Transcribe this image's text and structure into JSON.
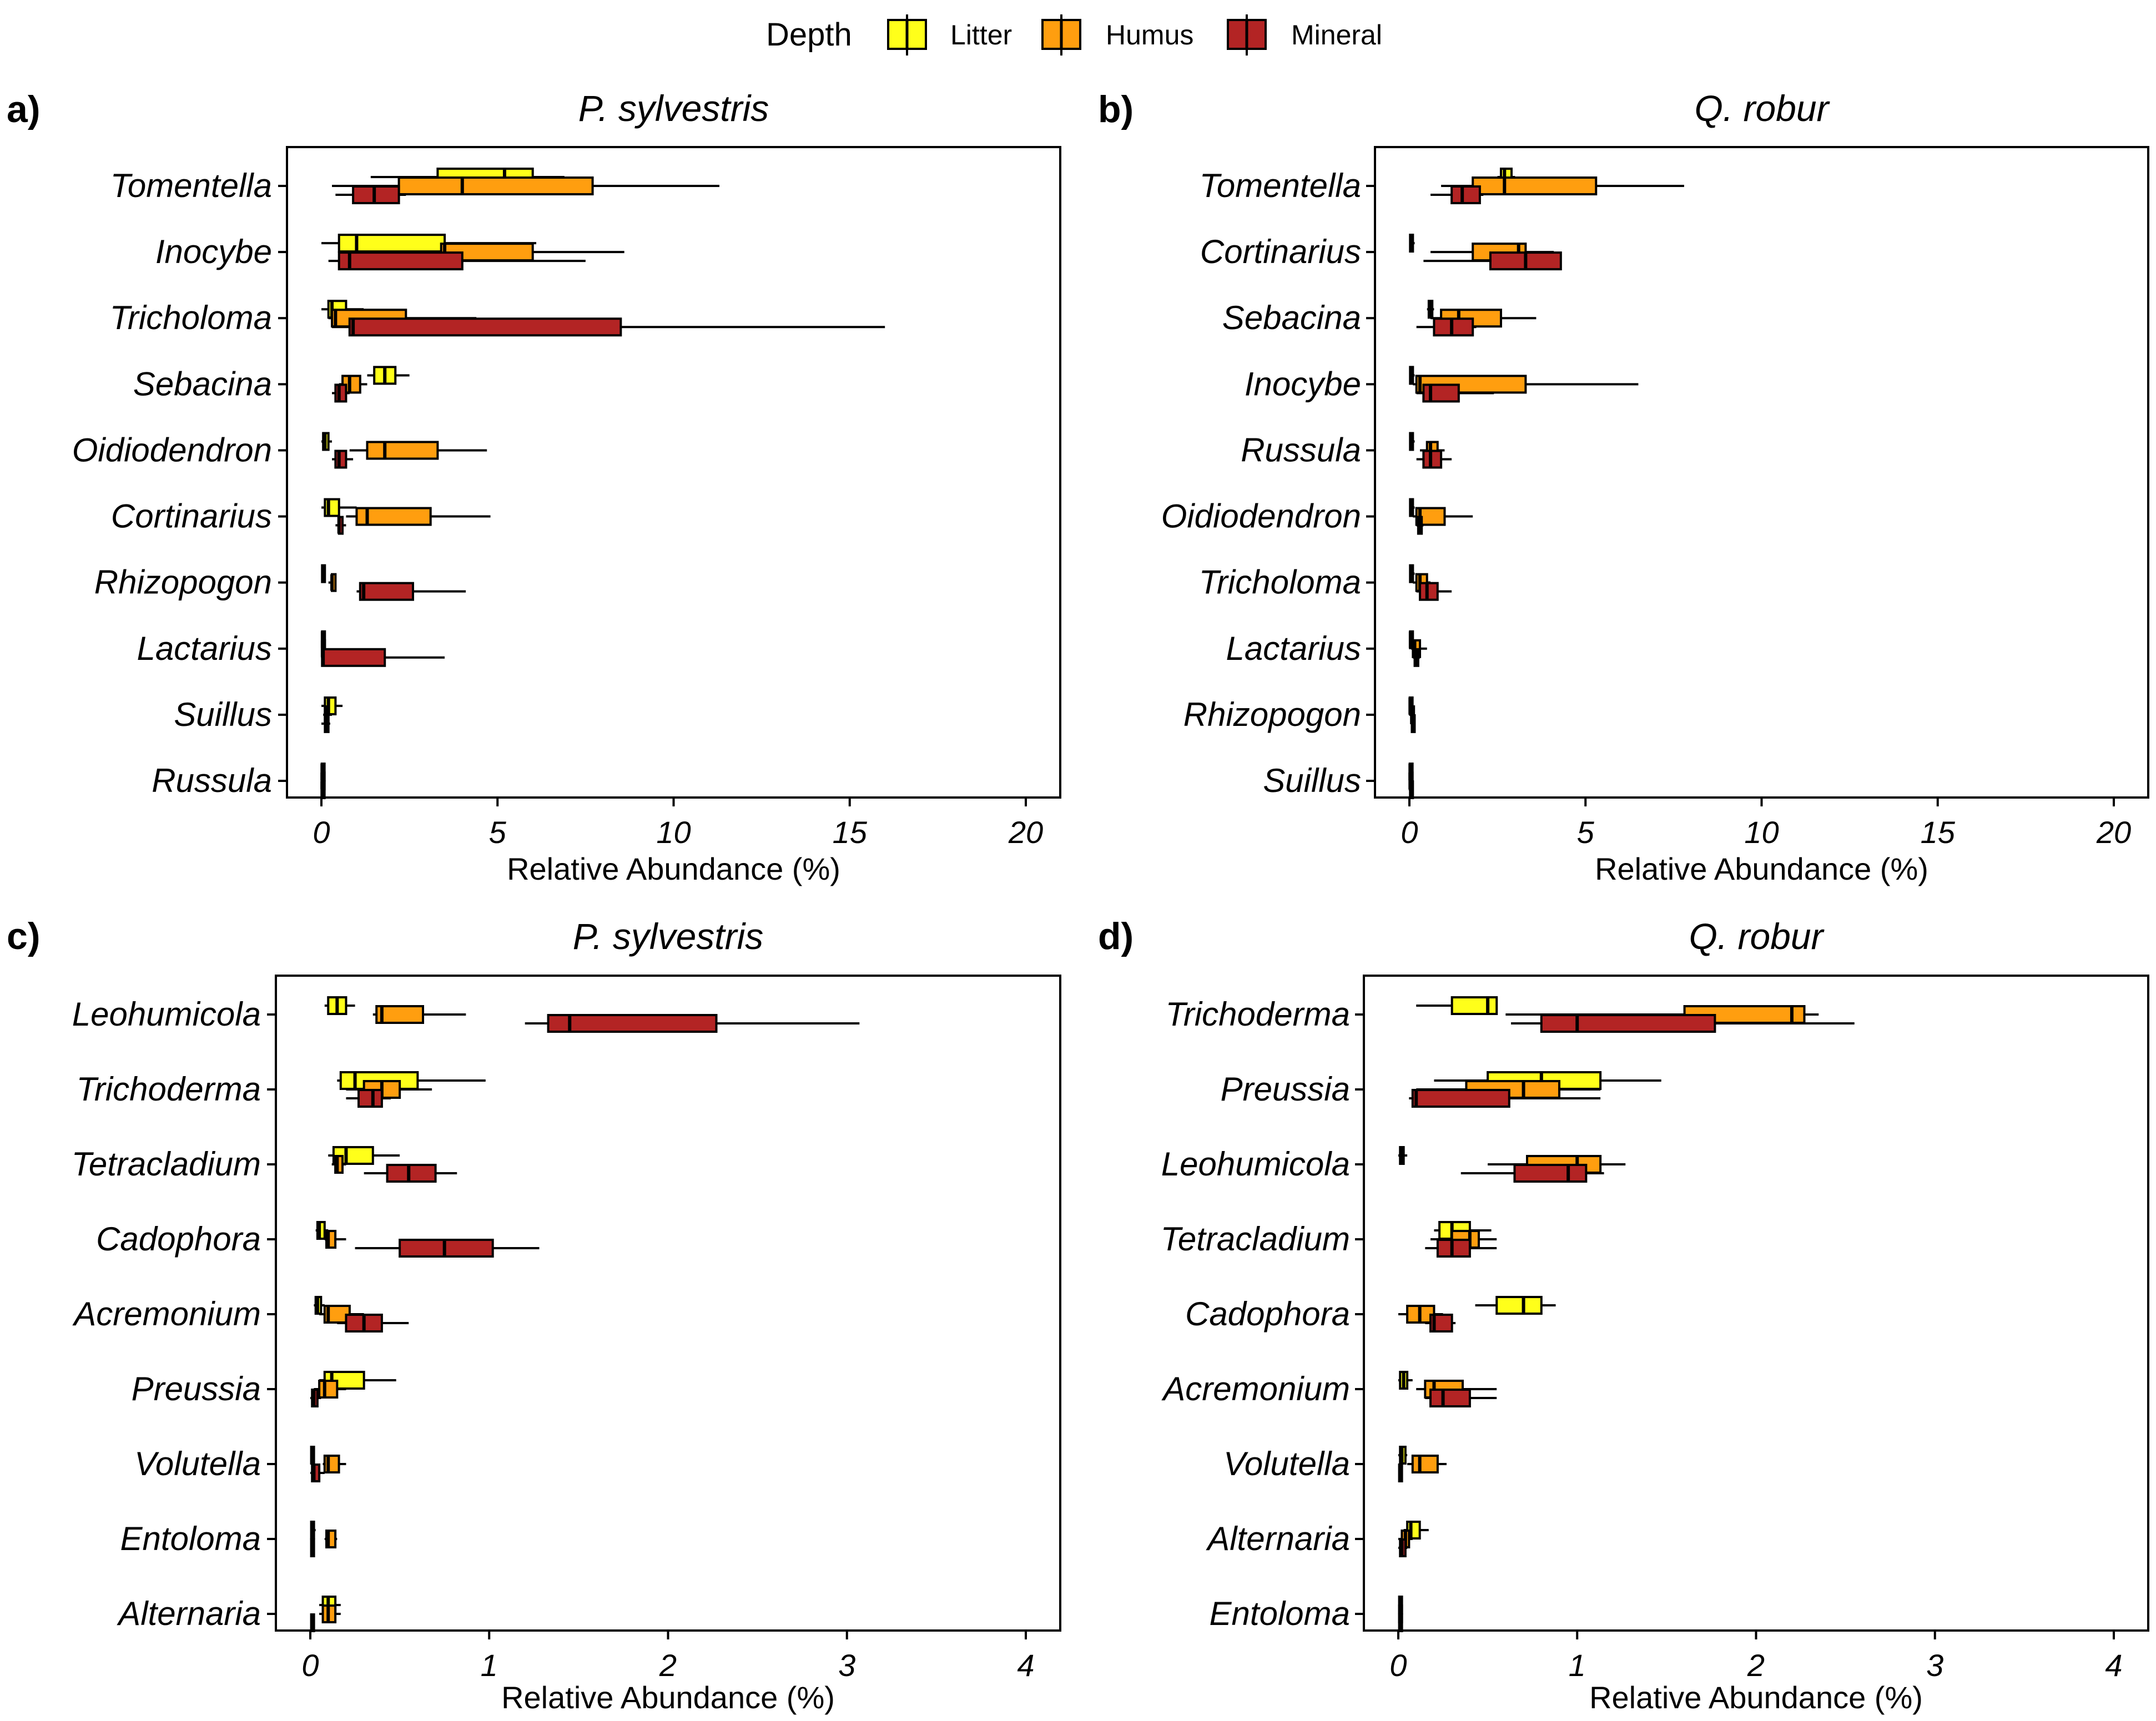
{
  "legend": {
    "title": "Depth",
    "items": [
      {
        "label": "Litter",
        "color": "#FFFF1A"
      },
      {
        "label": "Humus",
        "color": "#FF9E0F"
      },
      {
        "label": "Mineral",
        "color": "#B32424"
      }
    ]
  },
  "chart_data": [
    {
      "panel": "a)",
      "title": "P. sylvestris",
      "type": "boxplot-horizontal",
      "xlabel": "Relative Abundance (%)",
      "xlim": [
        0,
        20
      ],
      "xticks": [
        0,
        5,
        10,
        15,
        20
      ],
      "categories": [
        "Tomentella",
        "Inocybe",
        "Tricholoma",
        "Sebacina",
        "Oidiodendron",
        "Cortinarius",
        "Rhizopogon",
        "Lactarius",
        "Suillus",
        "Russula"
      ],
      "series": [
        {
          "name": "Litter",
          "boxes": [
            [
              1.4,
              3.3,
              5.2,
              6.0,
              6.9
            ],
            [
              0,
              0.5,
              1.0,
              3.5,
              6.1
            ],
            [
              0,
              0.2,
              0.3,
              0.7,
              1.2
            ],
            [
              1.3,
              1.5,
              1.8,
              2.1,
              2.5
            ],
            [
              0,
              0.05,
              0.1,
              0.2,
              0.3
            ],
            [
              0,
              0.1,
              0.2,
              0.5,
              1.0
            ],
            [
              0,
              0.02,
              0.04,
              0.07,
              0.1
            ],
            [
              0,
              0.02,
              0.03,
              0.05,
              0.1
            ],
            [
              0,
              0.1,
              0.2,
              0.4,
              0.6
            ],
            [
              0,
              0.01,
              0.02,
              0.03,
              0.05
            ]
          ]
        },
        {
          "name": "Humus",
          "boxes": [
            [
              0.3,
              2.2,
              4.0,
              7.7,
              11.3
            ],
            [
              2.0,
              3.4,
              3.5,
              6.0,
              8.6
            ],
            [
              0.2,
              0.3,
              0.4,
              2.4,
              4.4
            ],
            [
              0.5,
              0.6,
              0.8,
              1.1,
              1.3
            ],
            [
              0.8,
              1.3,
              1.8,
              3.3,
              4.7
            ],
            [
              0.7,
              1.0,
              1.3,
              3.1,
              4.8
            ],
            [
              0.2,
              0.3,
              0.3,
              0.4,
              0.4
            ],
            [
              0,
              0.02,
              0.03,
              0.05,
              0.1
            ],
            [
              0.05,
              0.1,
              0.15,
              0.2,
              0.3
            ],
            [
              0,
              0.01,
              0.02,
              0.03,
              0.05
            ]
          ]
        },
        {
          "name": "Mineral",
          "boxes": [
            [
              0.4,
              0.9,
              1.5,
              2.2,
              2.4
            ],
            [
              0.2,
              0.5,
              0.8,
              4.0,
              7.5
            ],
            [
              0.3,
              0.8,
              0.9,
              8.5,
              16.0
            ],
            [
              0.3,
              0.4,
              0.5,
              0.7,
              0.8
            ],
            [
              0.3,
              0.4,
              0.5,
              0.7,
              0.9
            ],
            [
              0.4,
              0.5,
              0.5,
              0.6,
              0.7
            ],
            [
              1.0,
              1.1,
              1.2,
              2.6,
              4.1
            ],
            [
              0,
              0.02,
              0.05,
              1.8,
              3.5
            ],
            [
              0,
              0.1,
              0.15,
              0.2,
              0.25
            ],
            [
              0,
              0.01,
              0.02,
              0.03,
              0.05
            ]
          ]
        }
      ]
    },
    {
      "panel": "b)",
      "title": "Q. robur",
      "type": "boxplot-horizontal",
      "xlabel": "Relative Abundance (%)",
      "xlim": [
        0,
        20
      ],
      "xticks": [
        0,
        5,
        10,
        15,
        20
      ],
      "categories": [
        "Tomentella",
        "Cortinarius",
        "Sebacina",
        "Inocybe",
        "Russula",
        "Oidiodendron",
        "Tricholoma",
        "Lactarius",
        "Rhizopogon",
        "Suillus"
      ],
      "series": [
        {
          "name": "Litter",
          "boxes": [
            [
              2.5,
              2.6,
              2.7,
              2.9,
              3.0
            ],
            [
              0,
              0.02,
              0.05,
              0.1,
              0.15
            ],
            [
              0.5,
              0.55,
              0.6,
              0.65,
              0.7
            ],
            [
              0,
              0.02,
              0.05,
              0.1,
              0.15
            ],
            [
              0,
              0.02,
              0.05,
              0.1,
              0.15
            ],
            [
              0,
              0.02,
              0.05,
              0.1,
              0.15
            ],
            [
              0,
              0.02,
              0.05,
              0.1,
              0.15
            ],
            [
              0,
              0.02,
              0.03,
              0.05,
              0.1
            ],
            [
              0,
              0.01,
              0.02,
              0.03,
              0.05
            ],
            [
              0,
              0.01,
              0.02,
              0.03,
              0.05
            ]
          ]
        },
        {
          "name": "Humus",
          "boxes": [
            [
              0.9,
              1.8,
              2.7,
              5.3,
              7.8
            ],
            [
              0.6,
              1.8,
              3.1,
              3.3,
              4.1
            ],
            [
              0.6,
              0.9,
              1.4,
              2.6,
              3.6
            ],
            [
              0.1,
              0.2,
              0.3,
              3.3,
              6.5
            ],
            [
              0.3,
              0.5,
              0.6,
              0.8,
              1.0
            ],
            [
              0.1,
              0.2,
              0.3,
              1.0,
              1.8
            ],
            [
              0.1,
              0.2,
              0.3,
              0.5,
              0.6
            ],
            [
              0.05,
              0.1,
              0.15,
              0.3,
              0.5
            ],
            [
              0,
              0.05,
              0.08,
              0.1,
              0.15
            ],
            [
              0,
              0.01,
              0.02,
              0.03,
              0.05
            ]
          ]
        },
        {
          "name": "Mineral",
          "boxes": [
            [
              0.6,
              1.2,
              1.5,
              2.0,
              2.1
            ],
            [
              0.4,
              2.3,
              3.3,
              4.3,
              4.3
            ],
            [
              0.2,
              0.7,
              1.2,
              1.8,
              1.9
            ],
            [
              0.2,
              0.4,
              0.6,
              1.4,
              2.4
            ],
            [
              0.2,
              0.4,
              0.6,
              0.9,
              1.2
            ],
            [
              0.2,
              0.25,
              0.3,
              0.35,
              0.4
            ],
            [
              0.2,
              0.3,
              0.5,
              0.8,
              1.2
            ],
            [
              0.1,
              0.15,
              0.2,
              0.25,
              0.3
            ],
            [
              0.05,
              0.07,
              0.1,
              0.12,
              0.15
            ],
            [
              0,
              0.02,
              0.05,
              0.07,
              0.1
            ]
          ]
        }
      ]
    },
    {
      "panel": "c)",
      "title": "P. sylvestris",
      "type": "boxplot-horizontal",
      "xlabel": "Relative Abundance (%)",
      "xlim": [
        0,
        4
      ],
      "xticks": [
        0,
        1,
        2,
        3,
        4
      ],
      "categories": [
        "Leohumicola",
        "Trichoderma",
        "Tetracladium",
        "Cadophora",
        "Acremonium",
        "Preussia",
        "Volutella",
        "Entoloma",
        "Alternaria"
      ],
      "series": [
        {
          "name": "Litter",
          "boxes": [
            [
              0.08,
              0.1,
              0.15,
              0.2,
              0.25
            ],
            [
              0.15,
              0.17,
              0.25,
              0.6,
              0.98
            ],
            [
              0.1,
              0.13,
              0.2,
              0.35,
              0.5
            ],
            [
              0.03,
              0.04,
              0.05,
              0.08,
              0.1
            ],
            [
              0.02,
              0.03,
              0.04,
              0.06,
              0.08
            ],
            [
              0.05,
              0.08,
              0.12,
              0.3,
              0.48
            ],
            [
              0,
              0.005,
              0.01,
              0.015,
              0.02
            ],
            [
              0,
              0.005,
              0.01,
              0.02,
              0.03
            ],
            [
              0.05,
              0.07,
              0.1,
              0.14,
              0.17
            ]
          ]
        },
        {
          "name": "Humus",
          "boxes": [
            [
              0.35,
              0.37,
              0.4,
              0.63,
              0.87
            ],
            [
              0.2,
              0.3,
              0.4,
              0.5,
              0.68
            ],
            [
              0.12,
              0.14,
              0.15,
              0.18,
              0.2
            ],
            [
              0.08,
              0.09,
              0.1,
              0.14,
              0.2
            ],
            [
              0.05,
              0.08,
              0.1,
              0.22,
              0.3
            ],
            [
              0.02,
              0.05,
              0.08,
              0.15,
              0.2
            ],
            [
              0.07,
              0.08,
              0.1,
              0.16,
              0.2
            ],
            [
              0.08,
              0.09,
              0.1,
              0.14,
              0.15
            ],
            [
              0.05,
              0.07,
              0.1,
              0.14,
              0.17
            ]
          ]
        },
        {
          "name": "Mineral",
          "boxes": [
            [
              1.2,
              1.33,
              1.45,
              2.27,
              3.07
            ],
            [
              0.2,
              0.27,
              0.35,
              0.4,
              0.45
            ],
            [
              0.3,
              0.43,
              0.55,
              0.7,
              0.82
            ],
            [
              0.25,
              0.5,
              0.75,
              1.02,
              1.28
            ],
            [
              0.15,
              0.2,
              0.3,
              0.4,
              0.55
            ],
            [
              0,
              0.01,
              0.02,
              0.04,
              0.06
            ],
            [
              0,
              0.01,
              0.02,
              0.05,
              0.08
            ],
            [
              0,
              0.005,
              0.01,
              0.015,
              0.02
            ],
            [
              0,
              0.005,
              0.01,
              0.015,
              0.02
            ]
          ]
        }
      ]
    },
    {
      "panel": "d)",
      "title": "Q. robur",
      "type": "boxplot-horizontal",
      "xlabel": "Relative Abundance (%)",
      "xlim": [
        0,
        4
      ],
      "xticks": [
        0,
        1,
        2,
        3,
        4
      ],
      "categories": [
        "Trichoderma",
        "Preussia",
        "Leohumicola",
        "Tetracladium",
        "Cadophora",
        "Acremonium",
        "Volutella",
        "Alternaria",
        "Entoloma"
      ],
      "series": [
        {
          "name": "Litter",
          "boxes": [
            [
              0.1,
              0.3,
              0.5,
              0.55,
              0.55
            ],
            [
              0.2,
              0.5,
              0.8,
              1.13,
              1.47
            ],
            [
              0,
              0.01,
              0.02,
              0.03,
              0.05
            ],
            [
              0.2,
              0.23,
              0.3,
              0.4,
              0.52
            ],
            [
              0.43,
              0.55,
              0.7,
              0.8,
              0.88
            ],
            [
              0,
              0.01,
              0.03,
              0.05,
              0.08
            ],
            [
              0,
              0.01,
              0.02,
              0.04,
              0.05
            ],
            [
              0.03,
              0.05,
              0.07,
              0.12,
              0.17
            ],
            [
              0,
              0.005,
              0.01,
              0.015,
              0.02
            ]
          ]
        },
        {
          "name": "Humus",
          "boxes": [
            [
              0.6,
              1.6,
              2.2,
              2.27,
              2.35
            ],
            [
              0.1,
              0.38,
              0.7,
              0.9,
              1.13
            ],
            [
              0.5,
              0.72,
              1.0,
              1.13,
              1.27
            ],
            [
              0.18,
              0.3,
              0.4,
              0.45,
              0.55
            ],
            [
              0,
              0.05,
              0.12,
              0.2,
              0.25
            ],
            [
              0.1,
              0.15,
              0.2,
              0.36,
              0.55
            ],
            [
              0.05,
              0.08,
              0.12,
              0.22,
              0.27
            ],
            [
              0,
              0.02,
              0.04,
              0.06,
              0.08
            ],
            [
              0,
              0.005,
              0.01,
              0.015,
              0.02
            ]
          ]
        },
        {
          "name": "Mineral",
          "boxes": [
            [
              0.63,
              0.8,
              1.0,
              1.77,
              2.55
            ],
            [
              0.06,
              0.08,
              0.1,
              0.62,
              1.13
            ],
            [
              0.35,
              0.65,
              0.95,
              1.05,
              1.15
            ],
            [
              0.15,
              0.22,
              0.3,
              0.4,
              0.55
            ],
            [
              0.15,
              0.18,
              0.2,
              0.3,
              0.32
            ],
            [
              0.15,
              0.18,
              0.25,
              0.4,
              0.55
            ],
            [
              0,
              0.005,
              0.01,
              0.015,
              0.02
            ],
            [
              0,
              0.01,
              0.02,
              0.04,
              0.05
            ],
            [
              0,
              0.005,
              0.01,
              0.015,
              0.02
            ]
          ]
        }
      ]
    }
  ]
}
